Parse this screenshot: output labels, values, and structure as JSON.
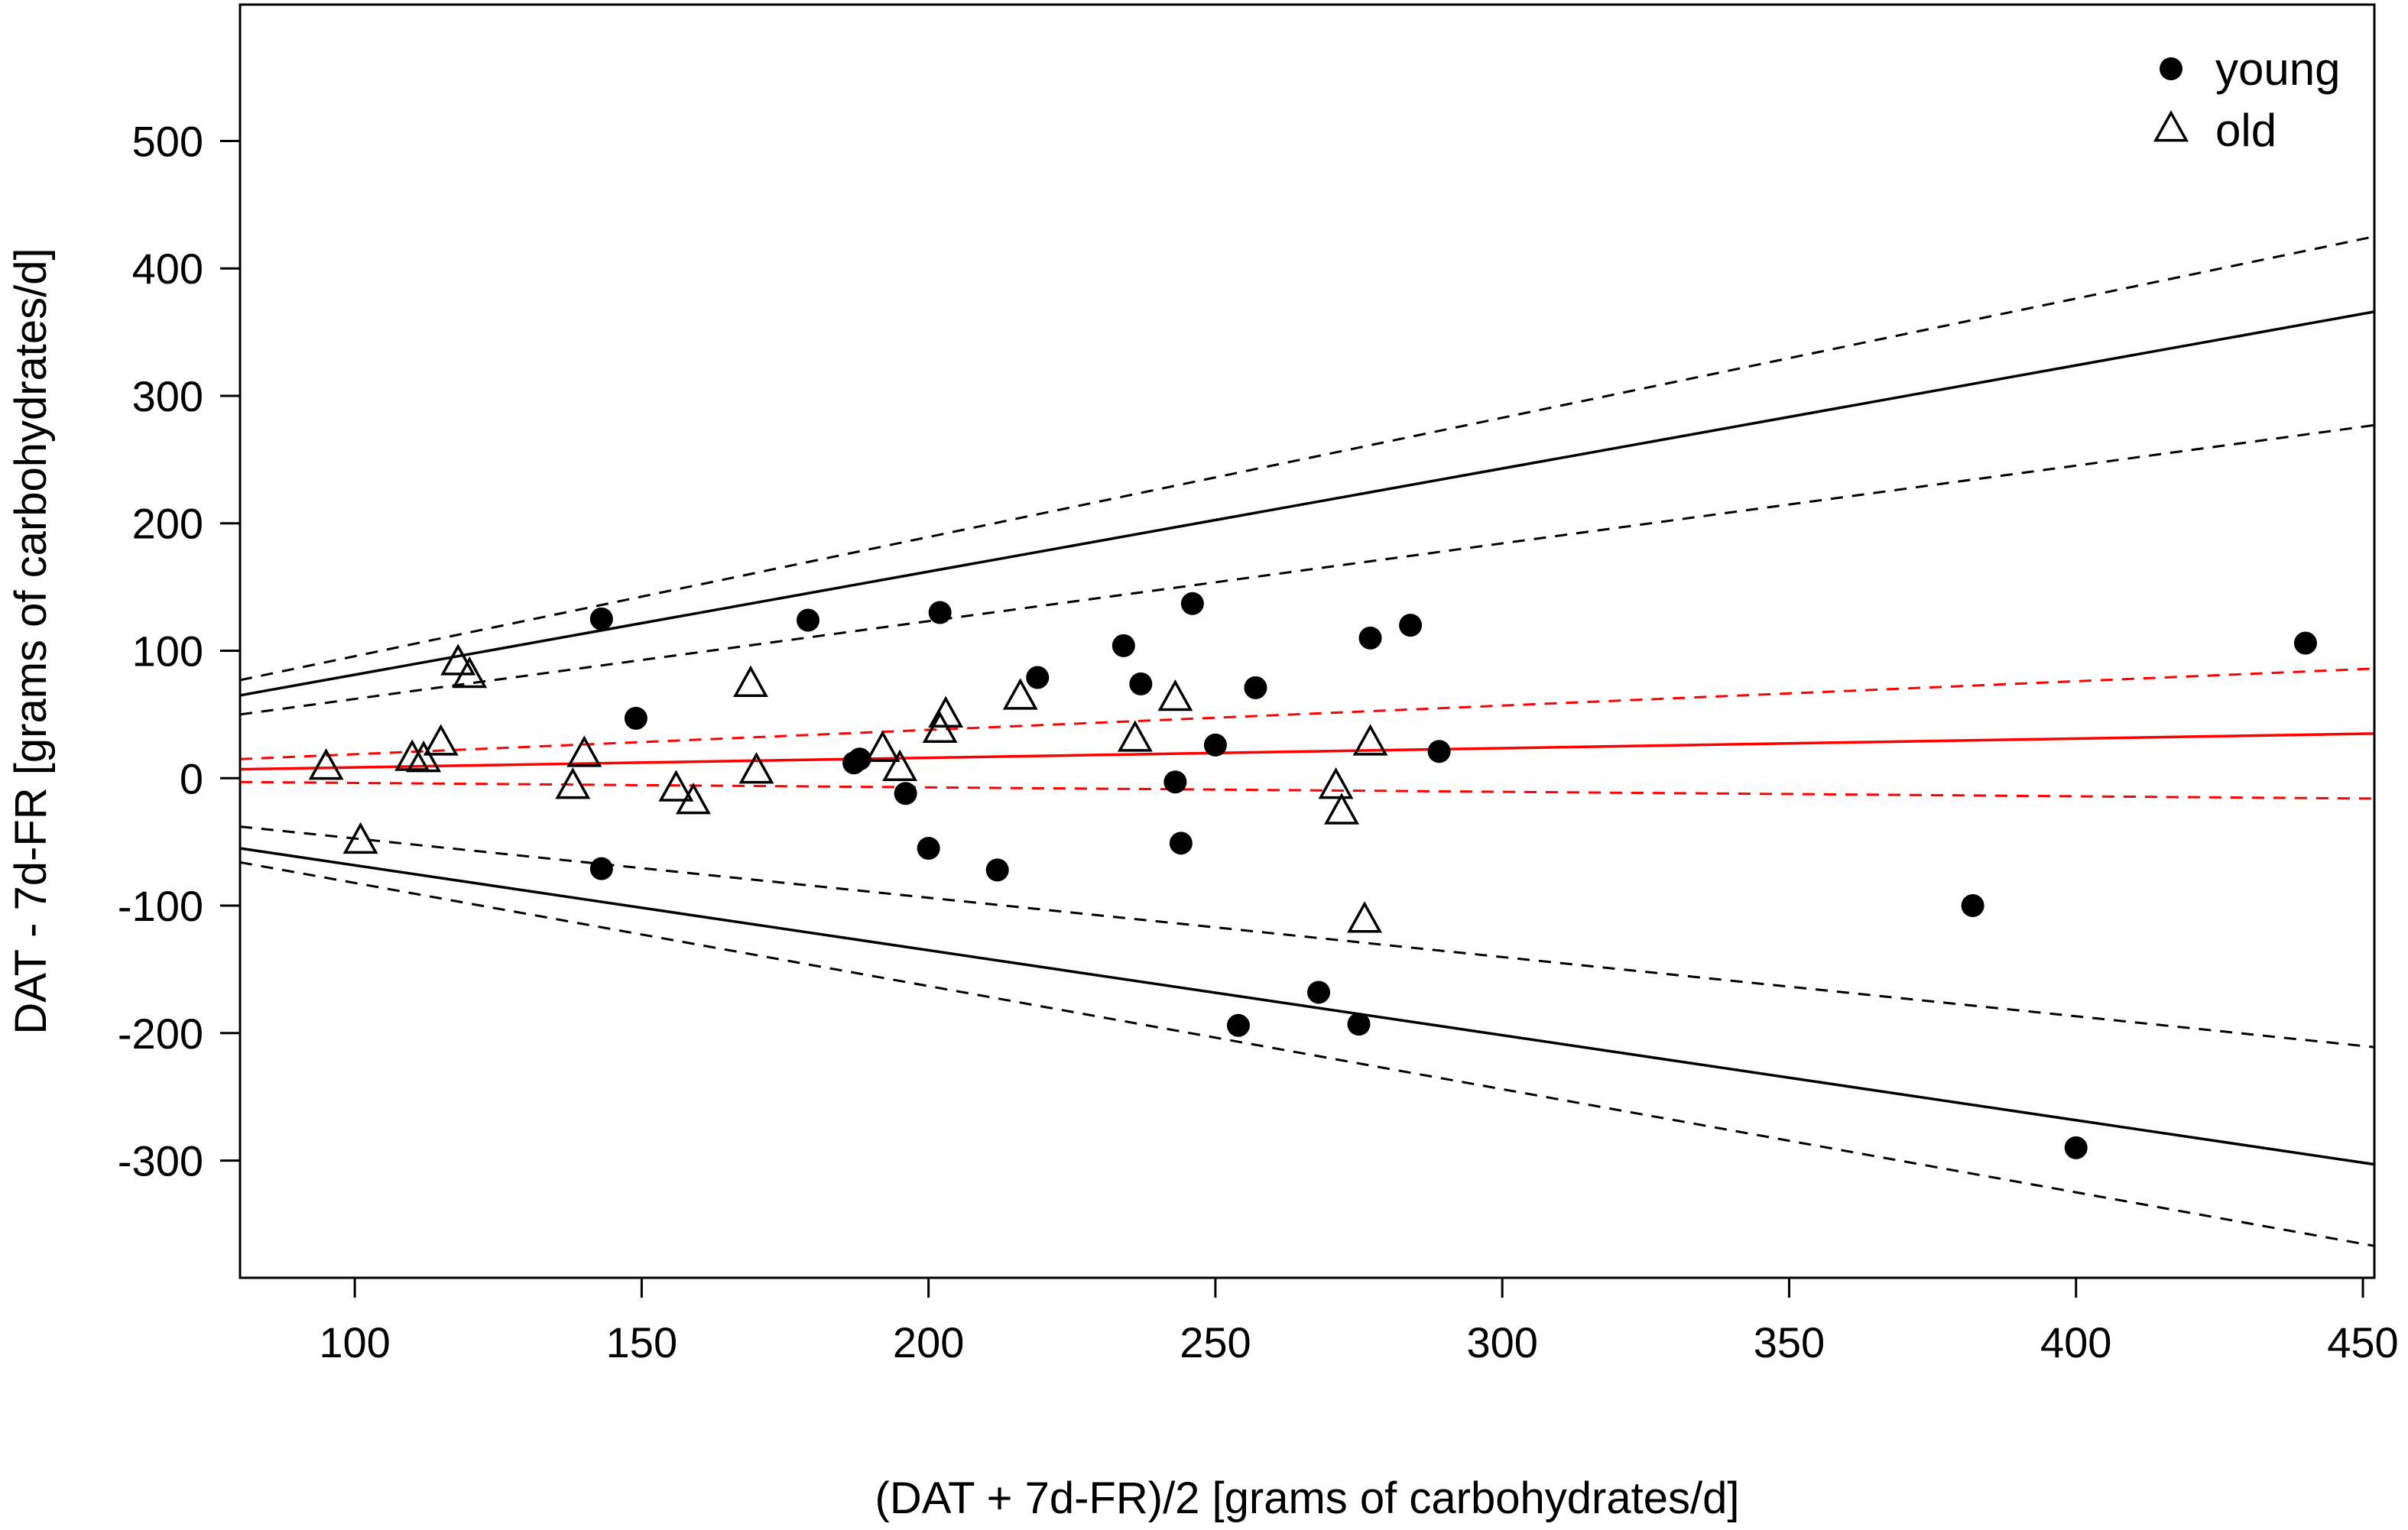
{
  "chart_data": {
    "type": "scatter",
    "title": "",
    "xlabel": "(DAT + 7d-FR)/2 [grams of carbohydrates/d]",
    "ylabel": "DAT - 7d-FR [grams of carbohydrates/d]",
    "xlim": [
      80,
      452
    ],
    "ylim": [
      -392,
      607
    ],
    "xticks": [
      100,
      150,
      200,
      250,
      300,
      350,
      400,
      450
    ],
    "yticks": [
      -300,
      -200,
      -100,
      0,
      100,
      200,
      300,
      400,
      500
    ],
    "grid": false,
    "legend": {
      "position": "top-right",
      "entries": [
        {
          "label": "young",
          "marker": "filled-circle"
        },
        {
          "label": "old",
          "marker": "open-triangle"
        }
      ]
    },
    "series": [
      {
        "name": "young",
        "marker": "filled-circle",
        "color": "#000000",
        "points": [
          [
            143,
            125
          ],
          [
            149,
            47
          ],
          [
            179,
            124
          ],
          [
            187,
            12
          ],
          [
            188,
            15
          ],
          [
            196,
            -12
          ],
          [
            200,
            -55
          ],
          [
            202,
            130
          ],
          [
            212,
            -72
          ],
          [
            219,
            79
          ],
          [
            234,
            104
          ],
          [
            237,
            74
          ],
          [
            243,
            -3
          ],
          [
            244,
            -51
          ],
          [
            246,
            137
          ],
          [
            250,
            26
          ],
          [
            254,
            -194
          ],
          [
            257,
            71
          ],
          [
            268,
            -168
          ],
          [
            275,
            -193
          ],
          [
            277,
            110
          ],
          [
            284,
            120
          ],
          [
            289,
            21
          ],
          [
            382,
            -100
          ],
          [
            400,
            -290
          ],
          [
            440,
            106
          ],
          [
            143,
            -71
          ]
        ]
      },
      {
        "name": "old",
        "marker": "open-triangle",
        "color": "#000000",
        "points": [
          [
            95,
            8
          ],
          [
            101,
            -50
          ],
          [
            110,
            15
          ],
          [
            112,
            14
          ],
          [
            115,
            27
          ],
          [
            118,
            90
          ],
          [
            120,
            80
          ],
          [
            138,
            -7
          ],
          [
            140,
            18
          ],
          [
            156,
            -9
          ],
          [
            159,
            -19
          ],
          [
            169,
            73
          ],
          [
            170,
            5
          ],
          [
            192,
            22
          ],
          [
            195,
            7
          ],
          [
            202,
            37
          ],
          [
            203,
            49
          ],
          [
            216,
            63
          ],
          [
            236,
            30
          ],
          [
            243,
            62
          ],
          [
            271,
            -7
          ],
          [
            272,
            -27
          ],
          [
            276,
            -112
          ],
          [
            277,
            27
          ]
        ]
      }
    ],
    "lines": [
      {
        "name": "upper-limit",
        "style": "solid",
        "color": "#000000",
        "x": [
          80,
          452
        ],
        "y": [
          65,
          366
        ]
      },
      {
        "name": "upper-limit-ci-upper",
        "style": "dashed",
        "color": "#000000",
        "x": [
          80,
          452
        ],
        "y": [
          77,
          425
        ]
      },
      {
        "name": "upper-limit-ci-lower",
        "style": "dashed",
        "color": "#000000",
        "x": [
          80,
          452
        ],
        "y": [
          50,
          277
        ]
      },
      {
        "name": "lower-limit",
        "style": "solid",
        "color": "#000000",
        "x": [
          80,
          452
        ],
        "y": [
          -55,
          -303
        ]
      },
      {
        "name": "lower-limit-ci-upper",
        "style": "dashed",
        "color": "#000000",
        "x": [
          80,
          452
        ],
        "y": [
          -38,
          -211
        ]
      },
      {
        "name": "lower-limit-ci-lower",
        "style": "dashed",
        "color": "#000000",
        "x": [
          80,
          452
        ],
        "y": [
          -66,
          -367
        ]
      },
      {
        "name": "mean-bias",
        "style": "solid",
        "color": "#ff0000",
        "x": [
          80,
          452
        ],
        "y": [
          7,
          35
        ]
      },
      {
        "name": "mean-bias-ci-upper",
        "style": "dashed",
        "color": "#ff0000",
        "x": [
          80,
          452
        ],
        "y": [
          15,
          86
        ]
      },
      {
        "name": "mean-bias-ci-lower",
        "style": "dashed",
        "color": "#ff0000",
        "x": [
          80,
          452
        ],
        "y": [
          -3,
          -16
        ]
      }
    ]
  }
}
